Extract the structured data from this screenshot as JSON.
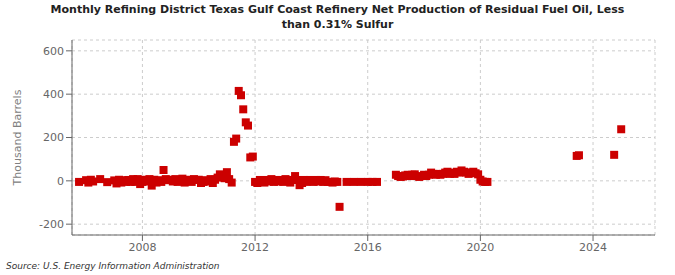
{
  "chart_data": {
    "type": "scatter",
    "title": "Monthly Refining District Texas Gulf Coast Refinery Net Production of Residual Fuel Oil, Less\nthan 0.31% Sulfur",
    "ylabel": "Thousand Barrels",
    "annotation": "Source: U.S. Energy Information Administration",
    "color": "#cc0000",
    "marker": "square",
    "grid": true,
    "xlim": [
      2005.5,
      2026.2
    ],
    "xticks": [
      2008,
      2012,
      2016,
      2020,
      2024
    ],
    "ylim": [
      -250,
      650
    ],
    "yticks": [
      -200,
      0,
      200,
      400,
      600
    ],
    "x": [
      2005.75,
      2006.0,
      2006.08,
      2006.17,
      2006.25,
      2006.5,
      2006.75,
      2007.0,
      2007.08,
      2007.17,
      2007.25,
      2007.33,
      2007.42,
      2007.5,
      2007.58,
      2007.67,
      2007.75,
      2007.83,
      2007.92,
      2008.0,
      2008.08,
      2008.17,
      2008.25,
      2008.33,
      2008.42,
      2008.5,
      2008.58,
      2008.67,
      2008.75,
      2008.83,
      2008.92,
      2009.0,
      2009.08,
      2009.17,
      2009.25,
      2009.33,
      2009.42,
      2009.5,
      2009.58,
      2009.67,
      2009.75,
      2009.83,
      2009.92,
      2010.0,
      2010.08,
      2010.17,
      2010.25,
      2010.33,
      2010.42,
      2010.5,
      2010.58,
      2010.67,
      2010.75,
      2010.83,
      2010.92,
      2011.0,
      2011.08,
      2011.17,
      2011.25,
      2011.33,
      2011.42,
      2011.5,
      2011.58,
      2011.67,
      2011.75,
      2011.83,
      2011.92,
      2012.0,
      2012.08,
      2012.17,
      2012.25,
      2012.33,
      2012.42,
      2012.5,
      2012.58,
      2012.67,
      2012.75,
      2012.83,
      2012.92,
      2013.0,
      2013.08,
      2013.17,
      2013.25,
      2013.33,
      2013.42,
      2013.5,
      2013.58,
      2013.67,
      2013.75,
      2013.83,
      2013.92,
      2014.0,
      2014.08,
      2014.17,
      2014.25,
      2014.33,
      2014.42,
      2014.5,
      2014.58,
      2014.67,
      2014.75,
      2014.83,
      2014.92,
      2015.0,
      2015.25,
      2015.5,
      2015.75,
      2016.0,
      2016.17,
      2016.33,
      2017.0,
      2017.08,
      2017.17,
      2017.25,
      2017.33,
      2017.42,
      2017.5,
      2017.58,
      2017.67,
      2017.75,
      2017.83,
      2018.0,
      2018.08,
      2018.17,
      2018.25,
      2018.33,
      2018.42,
      2018.5,
      2018.58,
      2018.67,
      2018.75,
      2018.83,
      2018.92,
      2019.0,
      2019.08,
      2019.17,
      2019.25,
      2019.33,
      2019.42,
      2019.5,
      2019.58,
      2019.67,
      2019.75,
      2019.83,
      2019.92,
      2020.0,
      2020.08,
      2020.17,
      2020.25,
      2023.42,
      2023.5,
      2024.75,
      2025.0
    ],
    "values": [
      -5,
      3,
      -8,
      5,
      -3,
      8,
      -6,
      2,
      -12,
      5,
      -8,
      3,
      -5,
      4,
      -5,
      8,
      -5,
      8,
      -15,
      -5,
      5,
      -3,
      8,
      -22,
      5,
      -8,
      3,
      -5,
      50,
      8,
      3,
      5,
      -3,
      8,
      -5,
      4,
      10,
      -8,
      3,
      5,
      -5,
      8,
      4,
      5,
      -10,
      -5,
      3,
      -3,
      8,
      -10,
      5,
      15,
      30,
      22,
      12,
      40,
      8,
      -8,
      180,
      195,
      415,
      395,
      330,
      270,
      255,
      108,
      112,
      -5,
      -10,
      4,
      -5,
      -8,
      4,
      -3,
      8,
      -5,
      4,
      -3,
      4,
      -5,
      8,
      4,
      -8,
      4,
      22,
      4,
      -20,
      -10,
      4,
      -5,
      4,
      3,
      -5,
      4,
      -3,
      4,
      -5,
      3,
      -5,
      -5,
      -8,
      -3,
      -5,
      -120,
      -5,
      -5,
      -5,
      -5,
      -5,
      -5,
      28,
      22,
      18,
      20,
      25,
      28,
      22,
      28,
      30,
      22,
      18,
      28,
      22,
      28,
      38,
      32,
      28,
      32,
      28,
      32,
      38,
      42,
      32,
      38,
      32,
      42,
      38,
      48,
      42,
      38,
      32,
      38,
      42,
      35,
      30,
      5,
      -3,
      -5,
      -5,
      115,
      118,
      120,
      238
    ]
  }
}
